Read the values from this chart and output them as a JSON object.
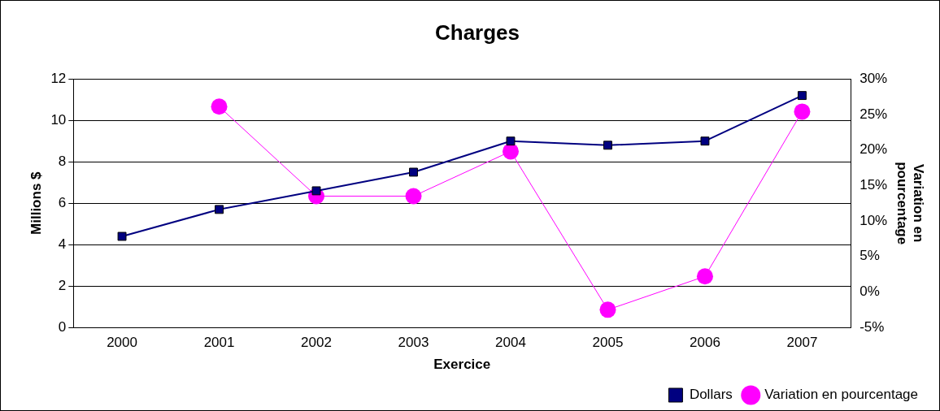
{
  "chart_data": {
    "type": "line",
    "title": "Charges",
    "xlabel": "Exercice",
    "ylabel": "Millions $",
    "y2label": "Variation en pourcentage",
    "categories": [
      "2000",
      "2001",
      "2002",
      "2003",
      "2004",
      "2005",
      "2006",
      "2007"
    ],
    "series": [
      {
        "name": "Dollars",
        "color": "#000080",
        "marker": "square",
        "values": [
          4.4,
          5.7,
          6.6,
          7.5,
          9.0,
          8.8,
          9.0,
          11.2
        ]
      },
      {
        "name": "Variation en pourcentage",
        "color": "#ff00ff",
        "marker": "circle",
        "axis": "y2",
        "values": [
          null,
          26.1,
          13.5,
          13.5,
          19.8,
          -2.5,
          2.2,
          25.4
        ]
      }
    ],
    "ylim": [
      0,
      12
    ],
    "yticks": [
      0,
      2,
      4,
      6,
      8,
      10,
      12
    ],
    "y2lim": [
      -5,
      30
    ],
    "y2ticks": [
      {
        "value": -5,
        "label": "-5%"
      },
      {
        "value": 0,
        "label": "0%"
      },
      {
        "value": 5,
        "label": "5%"
      },
      {
        "value": 10,
        "label": "10%"
      },
      {
        "value": 15,
        "label": "15%"
      },
      {
        "value": 20,
        "label": "20%"
      },
      {
        "value": 25,
        "label": "25%"
      },
      {
        "value": 30,
        "label": "30%"
      }
    ],
    "grid": "y",
    "legend": "bottom right",
    "line_style": "solid"
  }
}
